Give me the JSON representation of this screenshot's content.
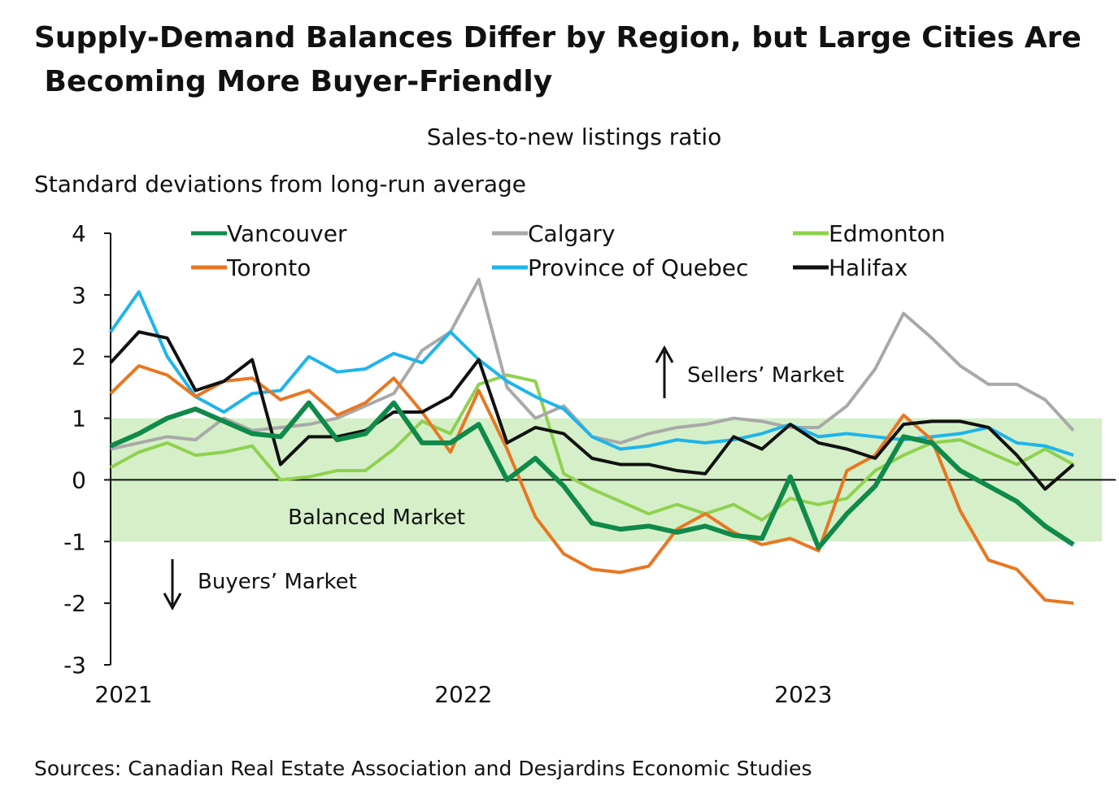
{
  "chart_data": {
    "type": "line",
    "title": "Supply-Demand Balances Differ by Region, but Large Cities Are Becoming More Buyer-Friendly",
    "subtitle": "Sales-to-new listings ratio",
    "y_label": "Standard deviations from long-run average",
    "source": "Sources: Canadian Real Estate Association and Desjardins Economic Studies",
    "categories": [
      "2021",
      null,
      null,
      null,
      null,
      null,
      null,
      null,
      null,
      null,
      null,
      null,
      "2022",
      null,
      null,
      null,
      null,
      null,
      null,
      null,
      null,
      null,
      null,
      null,
      "2023",
      null,
      null,
      null,
      null,
      null,
      null,
      null,
      null,
      null,
      null
    ],
    "ylim": [
      -3,
      4
    ],
    "yticks": [
      -3,
      -2,
      -1,
      0,
      1,
      2,
      3,
      4
    ],
    "band": {
      "label": "Balanced Market",
      "range": [
        -1,
        1
      ],
      "color": "#d5f0c8"
    },
    "annotations": [
      "Sellers’ Market",
      "Buyers’ Market"
    ],
    "series": [
      {
        "name": "Vancouver",
        "color": "#0f8a4a",
        "values": [
          0.55,
          0.75,
          1.0,
          1.15,
          0.95,
          0.75,
          0.7,
          1.25,
          0.65,
          0.75,
          1.25,
          0.6,
          0.6,
          0.9,
          0.0,
          0.35,
          -0.1,
          -0.7,
          -0.8,
          -0.75,
          -0.85,
          -0.75,
          -0.9,
          -0.95,
          0.05,
          -1.1,
          -0.55,
          -0.1,
          0.7,
          0.6,
          0.15,
          -0.1,
          -0.35,
          -0.75,
          -1.05
        ]
      },
      {
        "name": "Calgary",
        "color": "#a9a9a9",
        "values": [
          0.5,
          0.6,
          0.7,
          0.65,
          1.0,
          0.8,
          0.85,
          0.9,
          1.0,
          1.2,
          1.4,
          2.1,
          2.4,
          3.25,
          1.5,
          1.0,
          1.2,
          0.7,
          0.6,
          0.75,
          0.85,
          0.9,
          1.0,
          0.95,
          0.85,
          0.85,
          1.2,
          1.8,
          2.7,
          2.3,
          1.85,
          1.55,
          1.55,
          1.3,
          0.8
        ]
      },
      {
        "name": "Edmonton",
        "color": "#8fd14f",
        "values": [
          0.2,
          0.45,
          0.6,
          0.4,
          0.45,
          0.55,
          0.0,
          0.05,
          0.15,
          0.15,
          0.5,
          0.95,
          0.75,
          1.55,
          1.7,
          1.6,
          0.1,
          -0.15,
          -0.35,
          -0.55,
          -0.4,
          -0.55,
          -0.4,
          -0.65,
          -0.3,
          -0.4,
          -0.3,
          0.15,
          0.4,
          0.6,
          0.65,
          0.45,
          0.25,
          0.5,
          0.25
        ]
      },
      {
        "name": "Toronto",
        "color": "#e87722",
        "values": [
          1.4,
          1.85,
          1.7,
          1.35,
          1.6,
          1.65,
          1.3,
          1.45,
          1.05,
          1.25,
          1.65,
          1.1,
          0.45,
          1.45,
          0.5,
          -0.6,
          -1.2,
          -1.45,
          -1.5,
          -1.4,
          -0.8,
          -0.55,
          -0.85,
          -1.05,
          -0.95,
          -1.15,
          0.15,
          0.4,
          1.05,
          0.65,
          -0.5,
          -1.3,
          -1.45,
          -1.95,
          -2.0
        ]
      },
      {
        "name": "Province of Quebec",
        "color": "#1fb4ec",
        "values": [
          2.4,
          3.05,
          2.0,
          1.35,
          1.1,
          1.4,
          1.45,
          2.0,
          1.75,
          1.8,
          2.05,
          1.9,
          2.4,
          1.95,
          1.6,
          1.35,
          1.15,
          0.7,
          0.5,
          0.55,
          0.65,
          0.6,
          0.65,
          0.75,
          0.9,
          0.7,
          0.75,
          0.7,
          0.65,
          0.7,
          0.75,
          0.85,
          0.6,
          0.55,
          0.4
        ]
      },
      {
        "name": "Halifax",
        "color": "#111111",
        "values": [
          1.9,
          2.4,
          2.3,
          1.45,
          1.6,
          1.95,
          0.25,
          0.7,
          0.7,
          0.8,
          1.1,
          1.1,
          1.35,
          1.95,
          0.6,
          0.85,
          0.75,
          0.35,
          0.25,
          0.25,
          0.15,
          0.1,
          0.7,
          0.5,
          0.9,
          0.6,
          0.5,
          0.35,
          0.9,
          0.95,
          0.95,
          0.85,
          0.4,
          -0.15,
          0.25
        ]
      }
    ]
  }
}
